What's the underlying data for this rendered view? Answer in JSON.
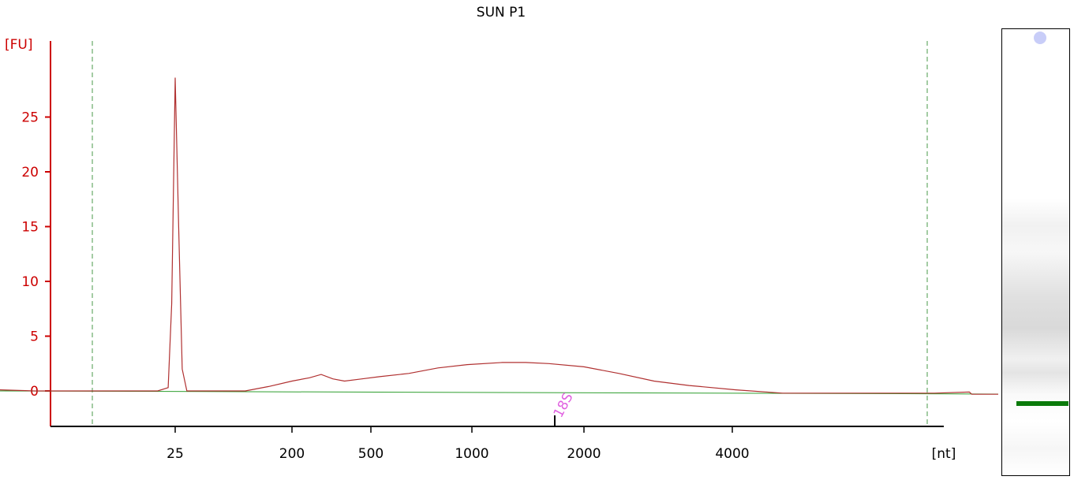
{
  "chart_data": {
    "type": "line",
    "title": "SUN P1",
    "ylabel": "[FU]",
    "xlabel": "[nt]",
    "ylim": [
      -3.2,
      31.5
    ],
    "y_ticks": [
      0,
      5,
      10,
      15,
      20,
      25
    ],
    "x_tick_labels": [
      "25",
      "200",
      "500",
      "1000",
      "2000",
      "4000"
    ],
    "grid": false,
    "legend": "none",
    "series": [
      {
        "points": [
          [
            -0.5,
            0.1
          ],
          [
            -0.2,
            0
          ],
          [
            0,
            0
          ],
          [
            0.3,
            0
          ],
          [
            0.6,
            0
          ],
          [
            0.85,
            0
          ],
          [
            0.94,
            0.3
          ],
          [
            0.97,
            8
          ],
          [
            1,
            28.6
          ],
          [
            1.03,
            15
          ],
          [
            1.06,
            2
          ],
          [
            1.1,
            0
          ],
          [
            1.3,
            0
          ],
          [
            1.6,
            0
          ],
          [
            1.8,
            0.4
          ],
          [
            2,
            0.9
          ],
          [
            2.15,
            1.2
          ],
          [
            2.25,
            1.5
          ],
          [
            2.35,
            1.1
          ],
          [
            2.45,
            0.9
          ],
          [
            2.6,
            1.1
          ],
          [
            2.75,
            1.3
          ],
          [
            3,
            1.6
          ],
          [
            3.25,
            2.1
          ],
          [
            3.5,
            2.4
          ],
          [
            3.8,
            2.6
          ],
          [
            4,
            2.6
          ],
          [
            4.2,
            2.5
          ],
          [
            4.5,
            2.2
          ],
          [
            4.8,
            1.6
          ],
          [
            5.1,
            0.9
          ],
          [
            5.4,
            0.5
          ],
          [
            5.8,
            0.1
          ],
          [
            6.2,
            -0.2
          ],
          [
            6.6,
            -0.2
          ],
          [
            7,
            -0.2
          ],
          [
            7.5,
            -0.2
          ],
          [
            7.8,
            -0.1
          ],
          [
            7.82,
            -0.3
          ],
          [
            8.2,
            -0.3
          ],
          [
            8.55,
            -0.3
          ]
        ]
      }
    ],
    "baseline": {
      "from": [
        -0.5,
        0.0
      ],
      "to": [
        8.55,
        -0.3
      ]
    },
    "marker_annotation": {
      "label": "18S",
      "x": 4.25
    },
    "gel_marker_color": "#0a7a0a"
  }
}
